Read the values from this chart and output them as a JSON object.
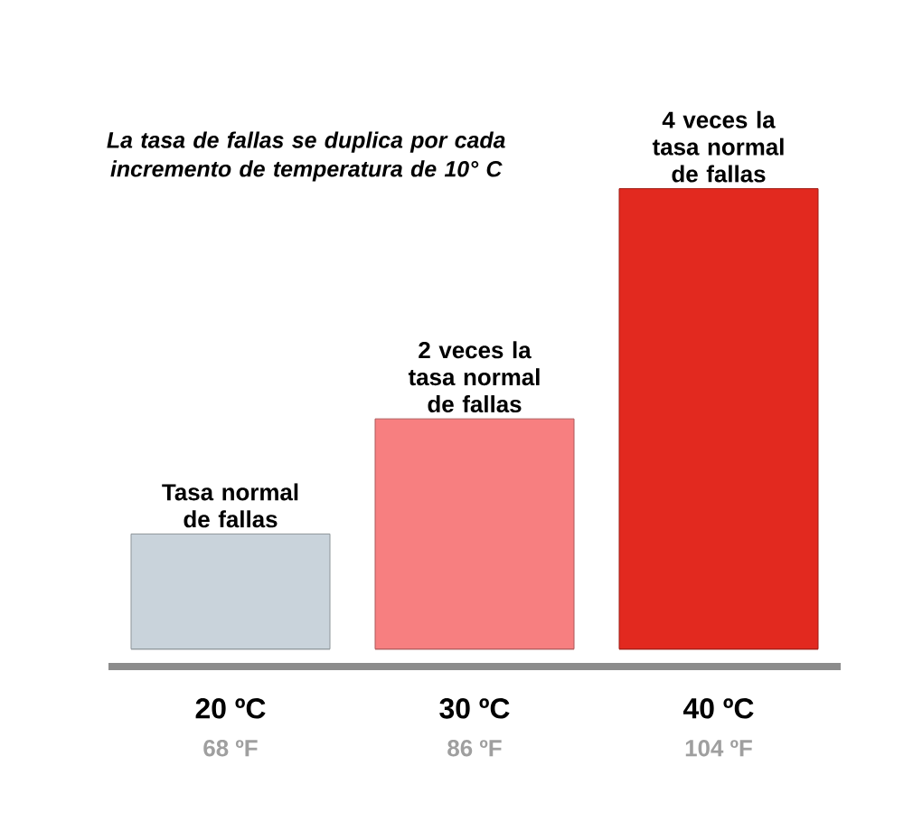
{
  "chart_data": {
    "type": "bar",
    "title": "La tasa de fallas se duplica por cada incremento de temperatura de 10° C",
    "categories": [
      "20 ºC",
      "30 ºC",
      "40 ºC"
    ],
    "values": [
      1,
      2,
      4
    ],
    "colors": [
      "#c9d3db",
      "#f77f80",
      "#e2291f"
    ],
    "value_labels": [
      "Tasa normal de fallas",
      "2 veces la tasa normal de fallas",
      "4 veces la tasa normal de fallas"
    ],
    "annotations": [
      "68 ºF",
      "86 ºF",
      "104 ºF"
    ]
  }
}
